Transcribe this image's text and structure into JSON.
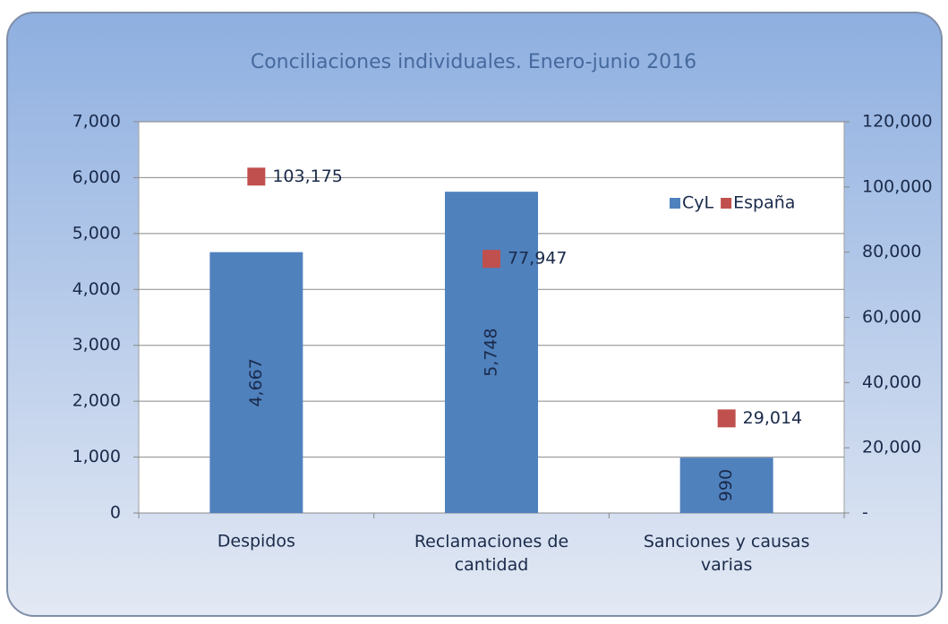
{
  "chart_data": {
    "type": "bar",
    "title": "Conciliaciones individuales. Enero-junio 2016",
    "categories": [
      "Despidos",
      "Reclamaciones de cantidad",
      "Sanciones y causas varias"
    ],
    "series": [
      {
        "name": "CyL",
        "type": "bar",
        "color": "#4f81bd",
        "values": [
          4667,
          5748,
          990
        ],
        "value_labels": [
          "4,667",
          "5,748",
          "990"
        ]
      },
      {
        "name": "España",
        "type": "scatter",
        "axis": "y2",
        "color": "#c0504d",
        "values": [
          103175,
          77947,
          29014
        ],
        "value_labels": [
          "103,175",
          "77,947",
          "29,014"
        ]
      }
    ],
    "ylim": [
      0,
      7000
    ],
    "yticks": [
      0,
      {
        "value": 1000,
        "label": "1,000"
      },
      {
        "value": 2000,
        "label": "2,000"
      },
      {
        "value": 3000,
        "label": "3,000"
      },
      {
        "value": 4000,
        "label": "4,000"
      },
      {
        "value": 5000,
        "label": "5,000"
      },
      {
        "value": 6000,
        "label": "6,000"
      },
      {
        "value": 7000,
        "label": "7,000"
      }
    ],
    "y2lim": [
      0,
      120000
    ],
    "y2ticks": [
      {
        "value": 0,
        "label": "-"
      },
      {
        "value": 20000,
        "label": "20,000"
      },
      {
        "value": 40000,
        "label": "40,000"
      },
      {
        "value": 60000,
        "label": "60,000"
      },
      {
        "value": 80000,
        "label": "80,000"
      },
      {
        "value": 100000,
        "label": "100,000"
      },
      {
        "value": 120000,
        "label": "120,000"
      }
    ],
    "grid": true,
    "legend": "upper right"
  }
}
